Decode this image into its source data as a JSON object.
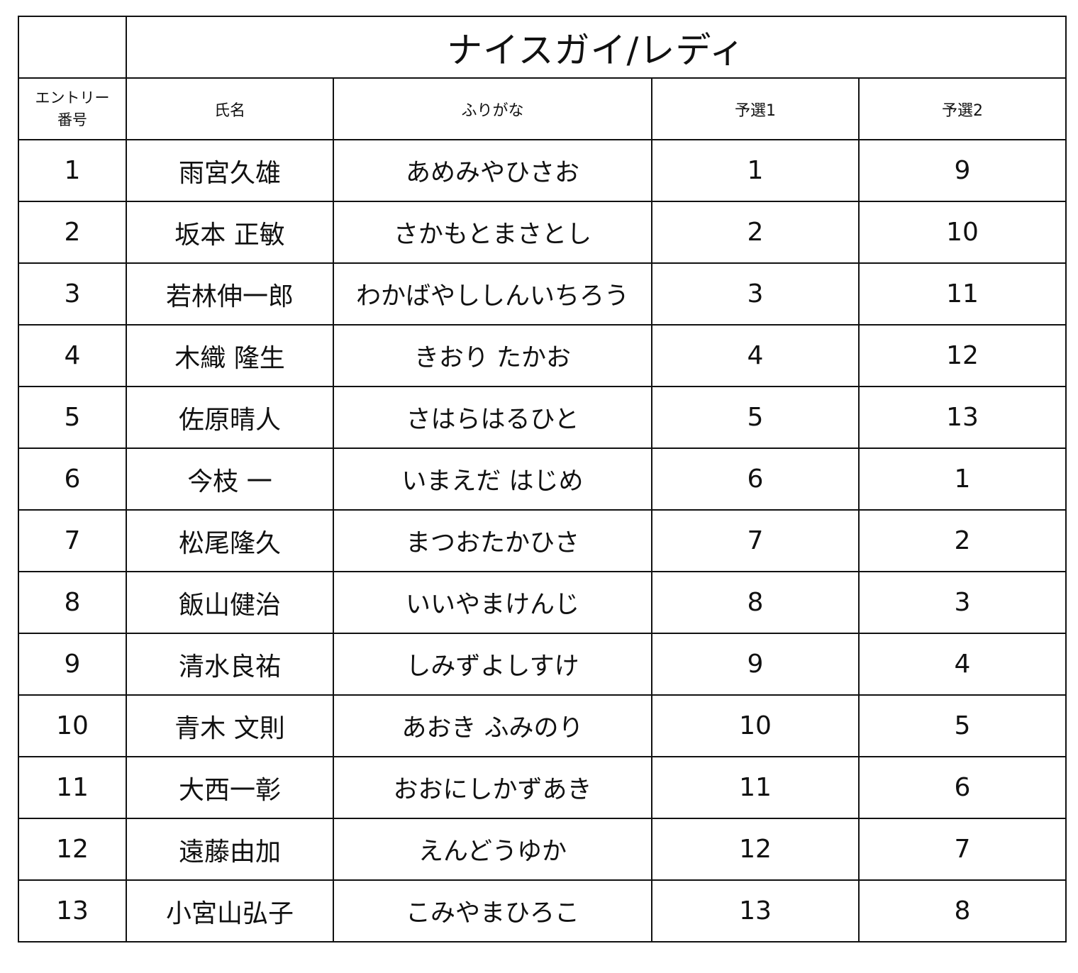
{
  "title": "ナイスガイ/レディ",
  "headers": {
    "entry_line1": "エントリー",
    "entry_line2": "番号",
    "name": "氏名",
    "furigana": "ふりがな",
    "prelim1": "予選1",
    "prelim2": "予選2"
  },
  "rows": [
    {
      "entry": "1",
      "name": "雨宮久雄",
      "furigana": "あめみやひさお",
      "prelim1": "1",
      "prelim2": "9"
    },
    {
      "entry": "2",
      "name": "坂本 正敏",
      "furigana": "さかもとまさとし",
      "prelim1": "2",
      "prelim2": "10"
    },
    {
      "entry": "3",
      "name": "若林伸一郎",
      "furigana": "わかばやししんいちろう",
      "prelim1": "3",
      "prelim2": "11"
    },
    {
      "entry": "4",
      "name": "木織 隆生",
      "furigana": "きおり たかお",
      "prelim1": "4",
      "prelim2": "12"
    },
    {
      "entry": "5",
      "name": "佐原晴人",
      "furigana": "さはらはるひと",
      "prelim1": "5",
      "prelim2": "13"
    },
    {
      "entry": "6",
      "name": "今枝 一",
      "furigana": "いまえだ はじめ",
      "prelim1": "6",
      "prelim2": "1"
    },
    {
      "entry": "7",
      "name": "松尾隆久",
      "furigana": "まつおたかひさ",
      "prelim1": "7",
      "prelim2": "2"
    },
    {
      "entry": "8",
      "name": "飯山健治",
      "furigana": "いいやまけんじ",
      "prelim1": "8",
      "prelim2": "3"
    },
    {
      "entry": "9",
      "name": "清水良祐",
      "furigana": "しみずよしすけ",
      "prelim1": "9",
      "prelim2": "4"
    },
    {
      "entry": "10",
      "name": "青木 文則",
      "furigana": "あおき ふみのり",
      "prelim1": "10",
      "prelim2": "5"
    },
    {
      "entry": "11",
      "name": "大西一彰",
      "furigana": "おおにしかずあき",
      "prelim1": "11",
      "prelim2": "6"
    },
    {
      "entry": "12",
      "name": "遠藤由加",
      "furigana": "えんどうゆか",
      "prelim1": "12",
      "prelim2": "7"
    },
    {
      "entry": "13",
      "name": "小宮山弘子",
      "furigana": "こみやまひろこ",
      "prelim1": "13",
      "prelim2": "8"
    }
  ]
}
